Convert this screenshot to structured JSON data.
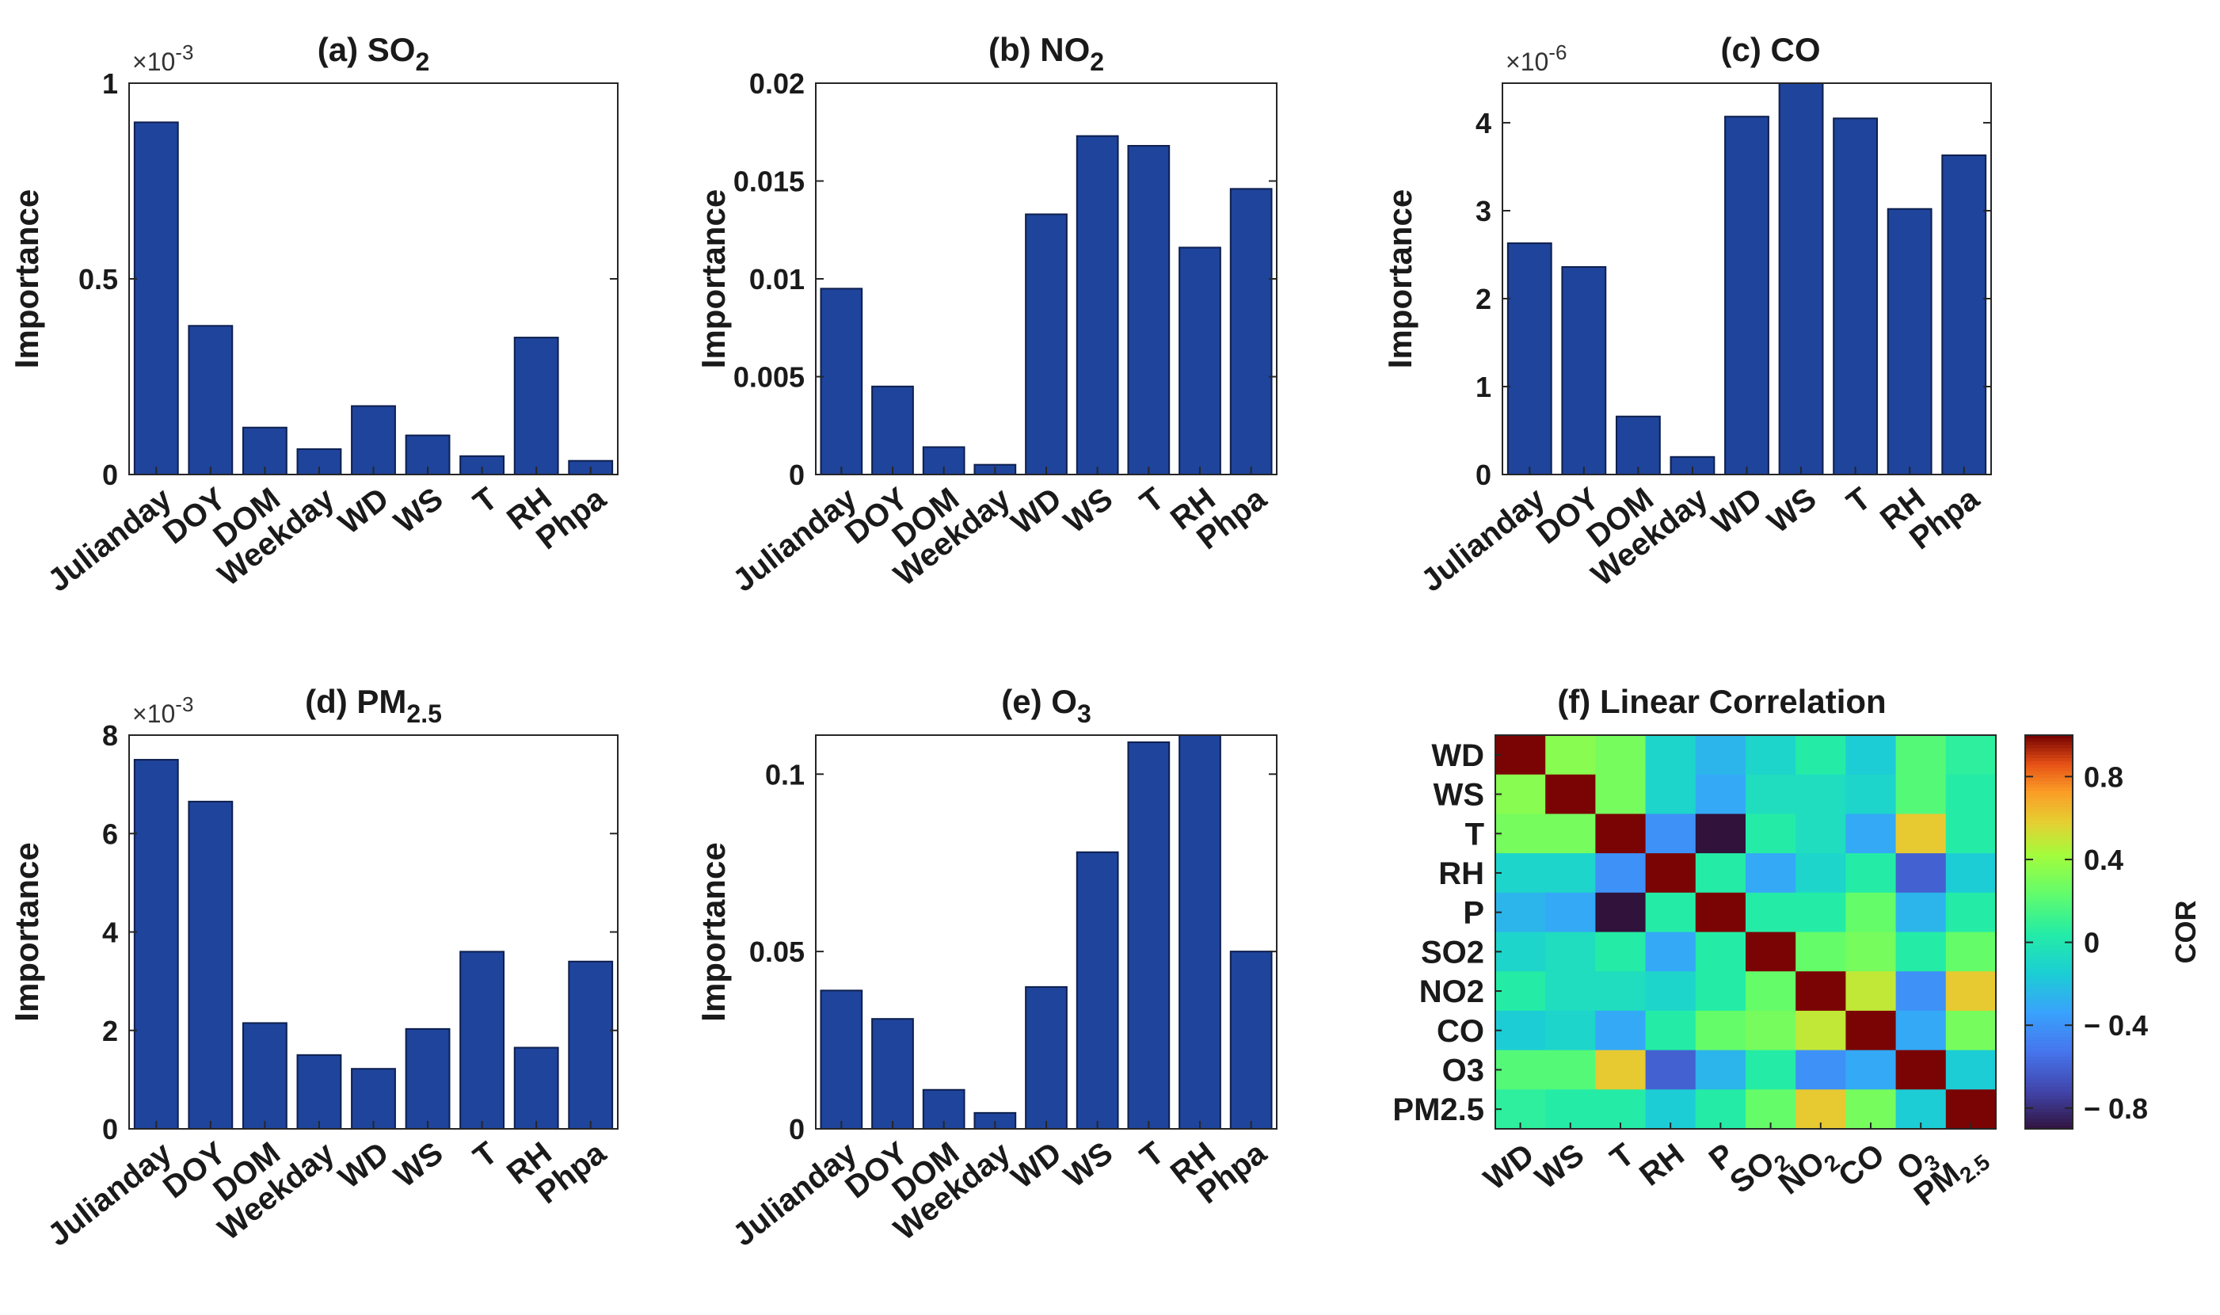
{
  "colors": {
    "bar": "#1f449c",
    "axis": "#262626"
  },
  "chart_data": [
    {
      "type": "bar",
      "id": "a",
      "title": "(a) SO",
      "title_sub": "2",
      "ylabel": "Importance",
      "multiplier": "×10",
      "multiplier_exp": "-3",
      "categories": [
        "Julianday",
        "DOY",
        "DOM",
        "Weekday",
        "WD",
        "WS",
        "T",
        "RH",
        "Phpa"
      ],
      "values": [
        0.9,
        0.38,
        0.12,
        0.065,
        0.175,
        0.1,
        0.047,
        0.35,
        0.035
      ],
      "ylim": [
        0,
        1
      ],
      "yticks": [
        0,
        0.5,
        1
      ],
      "ytick_labels": [
        "0",
        "0.5",
        "1"
      ]
    },
    {
      "type": "bar",
      "id": "b",
      "title": "(b) NO",
      "title_sub": "2",
      "ylabel": "Importance",
      "multiplier": "",
      "multiplier_exp": "",
      "categories": [
        "Julianday",
        "DOY",
        "DOM",
        "Weekday",
        "WD",
        "WS",
        "T",
        "RH",
        "Phpa"
      ],
      "values": [
        0.0095,
        0.0045,
        0.0014,
        0.0005,
        0.0133,
        0.0173,
        0.0168,
        0.0116,
        0.0146
      ],
      "ylim": [
        0,
        0.02
      ],
      "yticks": [
        0,
        0.005,
        0.01,
        0.015,
        0.02
      ],
      "ytick_labels": [
        "0",
        "0.005",
        "0.01",
        "0.015",
        "0.02"
      ]
    },
    {
      "type": "bar",
      "id": "c",
      "title": "(c) CO",
      "title_sub": "",
      "ylabel": "Importance",
      "multiplier": "×10",
      "multiplier_exp": "-6",
      "categories": [
        "Julianday",
        "DOY",
        "DOM",
        "Weekday",
        "WD",
        "WS",
        "T",
        "RH",
        "Phpa"
      ],
      "values": [
        2.63,
        2.36,
        0.66,
        0.2,
        4.07,
        4.45,
        4.05,
        3.02,
        3.63
      ],
      "ylim": [
        0,
        4.45
      ],
      "yticks": [
        0,
        1,
        2,
        3,
        4
      ],
      "ytick_labels": [
        "0",
        "1",
        "2",
        "3",
        "4"
      ]
    },
    {
      "type": "bar",
      "id": "d",
      "title": "(d) PM",
      "title_sub": "2.5",
      "ylabel": "Importance",
      "multiplier": "×10",
      "multiplier_exp": "-3",
      "categories": [
        "Julianday",
        "DOY",
        "DOM",
        "Weekday",
        "WD",
        "WS",
        "T",
        "RH",
        "Phpa"
      ],
      "values": [
        7.5,
        6.65,
        2.15,
        1.5,
        1.22,
        2.03,
        3.6,
        1.65,
        3.4
      ],
      "ylim": [
        0,
        8
      ],
      "yticks": [
        0,
        2,
        4,
        6,
        8
      ],
      "ytick_labels": [
        "0",
        "2",
        "4",
        "6",
        "8"
      ]
    },
    {
      "type": "bar",
      "id": "e",
      "title": "(e) O",
      "title_sub": "3",
      "ylabel": "Importance",
      "multiplier": "",
      "multiplier_exp": "",
      "categories": [
        "Julianday",
        "DOY",
        "DOM",
        "Weekday",
        "WD",
        "WS",
        "T",
        "RH",
        "Phpa"
      ],
      "values": [
        0.039,
        0.031,
        0.011,
        0.0045,
        0.04,
        0.078,
        0.109,
        0.111,
        0.05
      ],
      "ylim": [
        0,
        0.111
      ],
      "yticks": [
        0,
        0.05,
        0.1
      ],
      "ytick_labels": [
        "0",
        "0.05",
        "0.1"
      ]
    },
    {
      "type": "heatmap",
      "id": "f",
      "title": "(f) Linear Correlation",
      "row_labels": [
        "WD",
        "WS",
        "T",
        "RH",
        "P",
        "SO2",
        "NO2",
        "CO",
        "O3",
        "PM2.5"
      ],
      "col_labels": [
        {
          "main": "WD",
          "sub": ""
        },
        {
          "main": "WS",
          "sub": ""
        },
        {
          "main": "T",
          "sub": ""
        },
        {
          "main": "RH",
          "sub": ""
        },
        {
          "main": "P",
          "sub": ""
        },
        {
          "main": "SO",
          "sub": "2"
        },
        {
          "main": "NO",
          "sub": "2"
        },
        {
          "main": "CO",
          "sub": ""
        },
        {
          "main": "O",
          "sub": "3"
        },
        {
          "main": "PM",
          "sub": "2.5"
        }
      ],
      "matrix": [
        [
          1.0,
          0.35,
          0.3,
          -0.1,
          -0.25,
          -0.1,
          0.05,
          -0.15,
          0.2,
          0.08
        ],
        [
          0.35,
          1.0,
          0.3,
          -0.1,
          -0.3,
          -0.05,
          -0.05,
          -0.1,
          0.2,
          0.05
        ],
        [
          0.3,
          0.3,
          1.0,
          -0.4,
          -0.9,
          0.05,
          -0.05,
          -0.3,
          0.6,
          0.05
        ],
        [
          -0.1,
          -0.1,
          -0.4,
          1.0,
          0.05,
          -0.3,
          -0.1,
          0.05,
          -0.6,
          -0.15
        ],
        [
          -0.25,
          -0.3,
          -0.9,
          0.05,
          1.0,
          0.05,
          0.05,
          0.25,
          -0.25,
          0.05
        ],
        [
          -0.1,
          -0.05,
          0.05,
          -0.3,
          0.05,
          1.0,
          0.25,
          0.3,
          0.05,
          0.25
        ],
        [
          0.05,
          -0.05,
          -0.05,
          -0.1,
          0.05,
          0.25,
          1.0,
          0.5,
          -0.4,
          0.6
        ],
        [
          -0.15,
          -0.1,
          -0.3,
          0.05,
          0.25,
          0.3,
          0.5,
          1.0,
          -0.3,
          0.3
        ],
        [
          0.2,
          0.2,
          0.6,
          -0.6,
          -0.25,
          0.05,
          -0.4,
          -0.3,
          1.0,
          -0.15
        ],
        [
          0.08,
          0.05,
          0.05,
          -0.15,
          0.05,
          0.25,
          0.6,
          0.3,
          -0.15,
          1.0
        ]
      ],
      "clim": [
        -0.9,
        1.0
      ],
      "colorbar": {
        "label": "COR",
        "ticks": [
          0.8,
          0.4,
          0,
          -0.4,
          -0.8
        ],
        "tick_labels": [
          "0.8",
          "0.4",
          "0",
          "− 0.4",
          "− 0.8"
        ]
      }
    }
  ]
}
